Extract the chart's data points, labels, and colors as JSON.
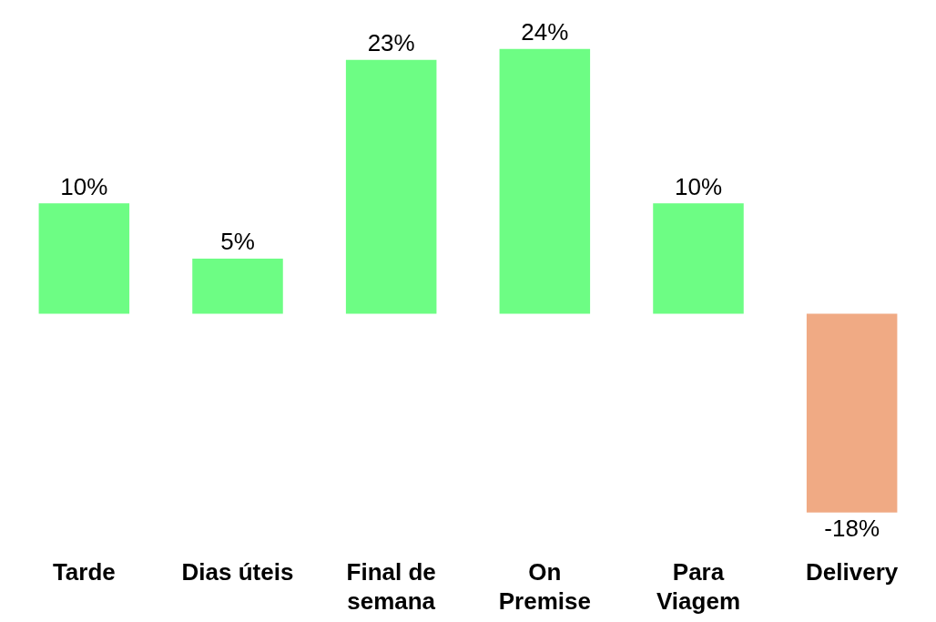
{
  "chart_data": {
    "type": "bar",
    "categories": [
      "Tarde",
      "Dias úteis",
      "Final de semana",
      "On Premise",
      "Para Viagem",
      "Delivery"
    ],
    "values": [
      10,
      5,
      23,
      24,
      10,
      -18
    ],
    "colors": [
      "#6dfd84",
      "#6dfd84",
      "#6dfd84",
      "#6dfd84",
      "#6dfd84",
      "#f0aa84"
    ],
    "value_labels": [
      "10%",
      "5%",
      "23%",
      "24%",
      "10%",
      "-18%"
    ],
    "grid": false,
    "legend": false
  }
}
